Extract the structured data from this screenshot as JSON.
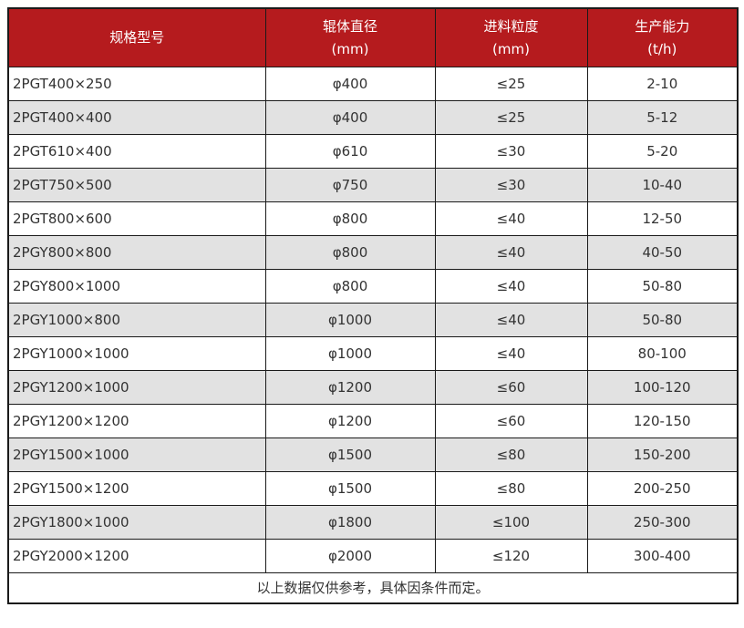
{
  "colors": {
    "header_bg": "#b51b1e",
    "header_text": "#ffffff",
    "row_bg": "#ffffff",
    "row_alt_bg": "#e2e2e2",
    "border": "#1a1a1a",
    "text": "#333333"
  },
  "chart_data": {
    "type": "table",
    "columns": [
      {
        "label": "规格型号",
        "unit": ""
      },
      {
        "label": "辊体直径",
        "unit": "(mm)"
      },
      {
        "label": "进料粒度",
        "unit": "(mm)"
      },
      {
        "label": "生产能力",
        "unit": "(t/h)"
      }
    ],
    "rows": [
      [
        "2PGT400×250",
        "φ400",
        "≤25",
        "2-10"
      ],
      [
        "2PGT400×400",
        "φ400",
        "≤25",
        "5-12"
      ],
      [
        "2PGT610×400",
        "φ610",
        "≤30",
        "5-20"
      ],
      [
        "2PGT750×500",
        "φ750",
        "≤30",
        "10-40"
      ],
      [
        "2PGT800×600",
        "φ800",
        "≤40",
        "12-50"
      ],
      [
        "2PGY800×800",
        "φ800",
        "≤40",
        "40-50"
      ],
      [
        "2PGY800×1000",
        "φ800",
        "≤40",
        "50-80"
      ],
      [
        "2PGY1000×800",
        "φ1000",
        "≤40",
        "50-80"
      ],
      [
        "2PGY1000×1000",
        "φ1000",
        "≤40",
        "80-100"
      ],
      [
        "2PGY1200×1000",
        "φ1200",
        "≤60",
        "100-120"
      ],
      [
        "2PGY1200×1200",
        "φ1200",
        "≤60",
        "120-150"
      ],
      [
        "2PGY1500×1000",
        "φ1500",
        "≤80",
        "150-200"
      ],
      [
        "2PGY1500×1200",
        "φ1500",
        "≤80",
        "200-250"
      ],
      [
        "2PGY1800×1000",
        "φ1800",
        "≤100",
        "250-300"
      ],
      [
        "2PGY2000×1200",
        "φ2000",
        "≤120",
        "300-400"
      ]
    ],
    "footer_note": "以上数据仅供参考，具体因条件而定。"
  }
}
